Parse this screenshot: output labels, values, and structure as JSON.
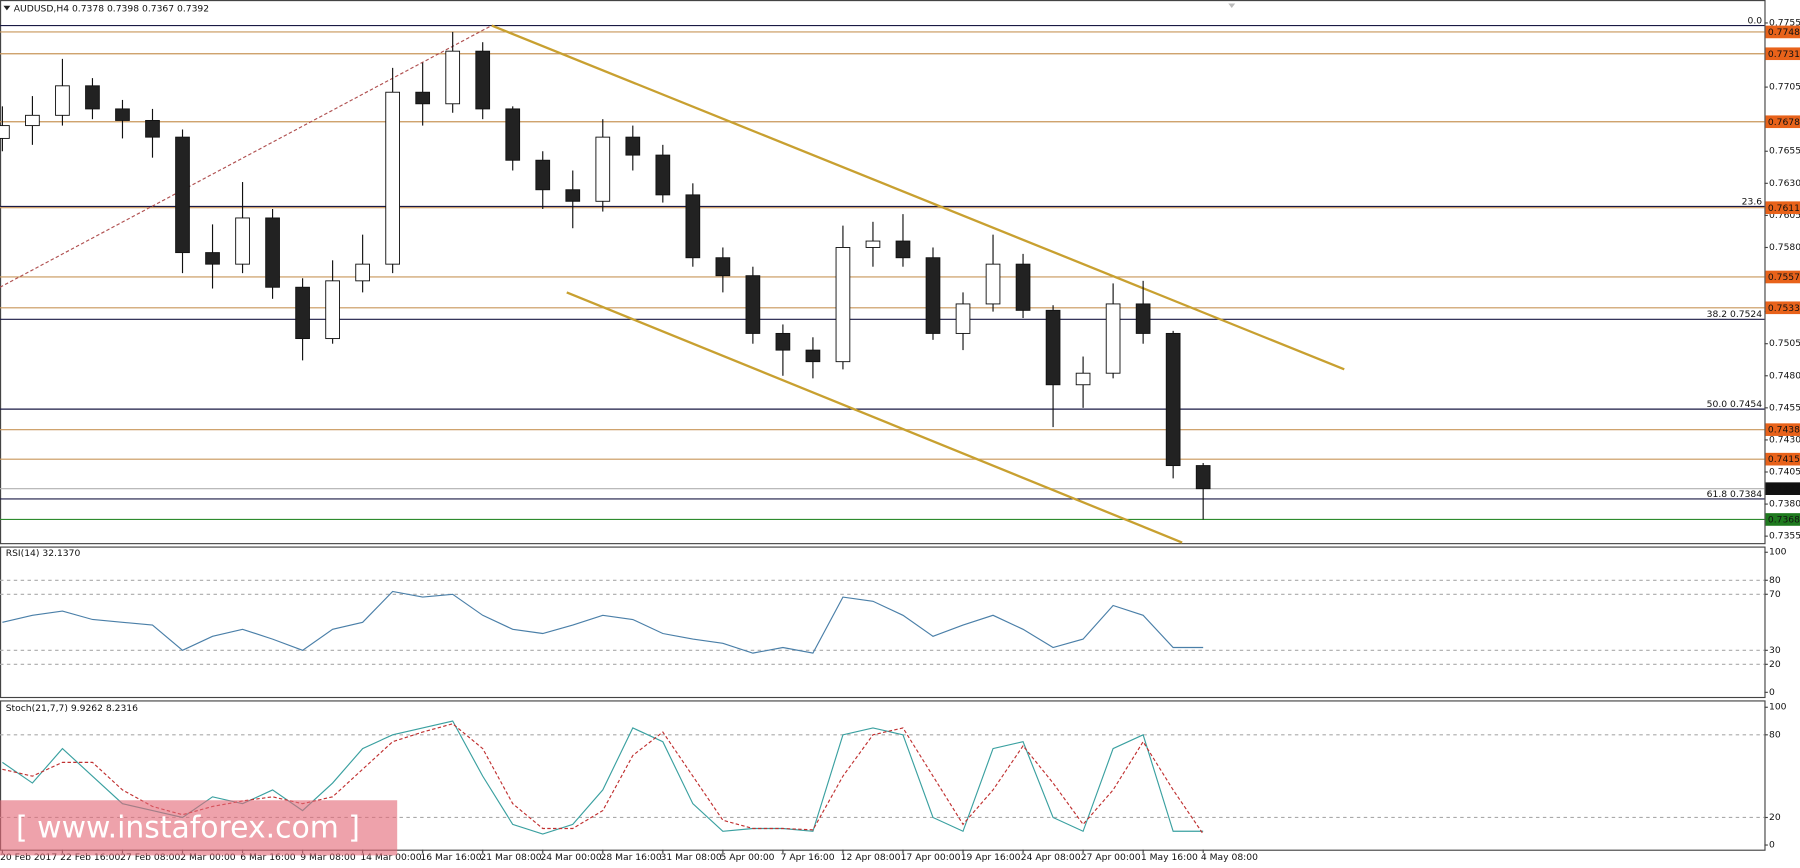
{
  "chart_data": [
    {
      "type": "candlestick",
      "title": "AUDUSD,H4 0.7378 0.7398 0.7367 0.7392",
      "categories": [
        "20 Feb 2017",
        null,
        "22 Feb 16:00",
        null,
        "27 Feb 08:00",
        null,
        "2 Mar 00:00",
        null,
        "6 Mar 16:00",
        null,
        "9 Mar 08:00",
        null,
        "14 Mar 00:00",
        null,
        "16 Mar 16:00",
        null,
        "21 Mar 08:00",
        null,
        "24 Mar 00:00",
        null,
        "28 Mar 16:00",
        null,
        "31 Mar 08:00",
        null,
        "5 Apr 00:00",
        null,
        "7 Apr 16:00",
        null,
        "12 Apr 08:00",
        null,
        "17 Apr 00:00",
        null,
        "19 Apr 16:00",
        null,
        "24 Apr 08:00",
        null,
        "27 Apr 00:00",
        null,
        "1 May 16:00",
        null,
        "4 May 08:00"
      ],
      "open": [
        0.7665,
        0.7675,
        0.7683,
        0.7706,
        0.7688,
        0.7679,
        0.7666,
        0.7576,
        0.7567,
        0.7603,
        0.7549,
        0.7509,
        0.7554,
        0.7567,
        0.7701,
        0.7692,
        0.7733,
        0.7688,
        0.7648,
        0.7625,
        0.7616,
        0.7666,
        0.7652,
        0.7621,
        0.7572,
        0.7558,
        0.7513,
        0.75,
        0.7491,
        0.758,
        0.7585,
        0.7572,
        0.7513,
        0.7536,
        0.7567,
        0.7531,
        0.7473,
        0.7482,
        0.7536,
        0.7513,
        0.741
      ],
      "high": [
        0.769,
        0.7698,
        0.7727,
        0.7712,
        0.7695,
        0.7688,
        0.7672,
        0.7598,
        0.7631,
        0.761,
        0.7556,
        0.757,
        0.759,
        0.772,
        0.7724,
        0.7748,
        0.774,
        0.769,
        0.7655,
        0.764,
        0.768,
        0.7675,
        0.766,
        0.763,
        0.758,
        0.7565,
        0.752,
        0.751,
        0.7597,
        0.76,
        0.7606,
        0.758,
        0.7545,
        0.759,
        0.7575,
        0.7535,
        0.7495,
        0.7552,
        0.7554,
        0.7515,
        0.7412
      ],
      "low": [
        0.7655,
        0.766,
        0.7675,
        0.768,
        0.7665,
        0.765,
        0.756,
        0.7548,
        0.756,
        0.754,
        0.7492,
        0.7505,
        0.7545,
        0.756,
        0.7675,
        0.7685,
        0.768,
        0.764,
        0.761,
        0.7595,
        0.7608,
        0.764,
        0.7615,
        0.7565,
        0.7545,
        0.7505,
        0.748,
        0.7478,
        0.7485,
        0.7565,
        0.7565,
        0.7508,
        0.75,
        0.753,
        0.7525,
        0.744,
        0.7455,
        0.7478,
        0.7505,
        0.74,
        0.7368
      ],
      "close": [
        0.7675,
        0.7683,
        0.7706,
        0.7688,
        0.7679,
        0.7666,
        0.7576,
        0.7567,
        0.7603,
        0.7549,
        0.7509,
        0.7554,
        0.7567,
        0.7701,
        0.7692,
        0.7733,
        0.7688,
        0.7648,
        0.7625,
        0.7616,
        0.7666,
        0.7652,
        0.7621,
        0.7572,
        0.7558,
        0.7513,
        0.75,
        0.7491,
        0.758,
        0.7585,
        0.7572,
        0.7513,
        0.7536,
        0.7567,
        0.7531,
        0.7473,
        0.7482,
        0.7536,
        0.7513,
        0.741,
        0.7392
      ],
      "up_color": "#ffffff",
      "down_color": "#222222",
      "ylim": [
        0.73496,
        0.77711
      ],
      "yticks": [
        0.7755,
        0.7705,
        0.7655,
        {
          "value": 0.763,
          "label": "0.7630"
        },
        0.7605,
        {
          "value": 0.758,
          "label": "0.7580"
        },
        {
          "value": 0.753,
          "label": "0.7530"
        },
        0.7505,
        {
          "value": 0.748,
          "label": "0.7480"
        },
        0.7455,
        {
          "value": 0.743,
          "label": "0.7430"
        },
        0.7405,
        {
          "value": 0.738,
          "label": "0.7380"
        },
        0.7355
      ],
      "grid": false,
      "levels": [
        {
          "value": 0.7748,
          "line_color": "#c8965a",
          "label_color": "#e8621a"
        },
        {
          "value": 0.7731,
          "line_color": "#c8965a",
          "label_color": "#e8621a"
        },
        {
          "value": 0.7678,
          "line_color": "#c8965a",
          "label_color": "#e8621a"
        },
        {
          "value": 0.7611,
          "line_color": "#c8965a",
          "label_color": "#e8621a"
        },
        {
          "value": 0.7557,
          "line_color": "#c8965a",
          "label_color": "#e8621a"
        },
        {
          "value": 0.7533,
          "line_color": "#c8965a",
          "label_color": "#e8621a"
        },
        {
          "value": 0.7438,
          "line_color": "#c8965a",
          "label_color": "#e8621a"
        },
        {
          "value": 0.7415,
          "line_color": "#c8965a",
          "label_color": "#e8621a"
        },
        {
          "value": 0.7392,
          "line_color": "#b0b0b0",
          "label_color": "#111111"
        },
        {
          "value": 0.7368,
          "line_color": "#2e8b2e",
          "label_color": "#1e7a1e"
        }
      ],
      "fib_color": "#1a1a44",
      "fib_levels": [
        {
          "value": 0.7753,
          "label": "0.0"
        },
        {
          "value": 0.7612,
          "label": "23.6"
        },
        {
          "value": 0.7524,
          "label": "38.2 0.7524"
        },
        {
          "value": 0.7454,
          "label": "50.0 0.7454"
        },
        {
          "value": 0.7384,
          "label": "61.8 0.7384"
        }
      ],
      "trendlines": [
        {
          "x": [
            16.3,
            44.7
          ],
          "y": [
            0.7753,
            0.7485
          ],
          "color": "#c8a030",
          "dashed": false
        },
        {
          "x": [
            18.8,
            39.3
          ],
          "y": [
            0.7545,
            0.735
          ],
          "color": "#c8a030",
          "dashed": false
        },
        {
          "x": [
            -0.08,
            16.3
          ],
          "y": [
            0.7549,
            0.7753
          ],
          "color": "#b05050",
          "dashed": true
        }
      ]
    },
    {
      "type": "line",
      "title": "RSI(14) 32.1370",
      "values": [
        50,
        55,
        58,
        52,
        50,
        48,
        30,
        40,
        45,
        38,
        30,
        45,
        50,
        72,
        68,
        70,
        55,
        45,
        42,
        48,
        55,
        52,
        42,
        38,
        35,
        28,
        32,
        28,
        68,
        65,
        55,
        40,
        48,
        55,
        45,
        32,
        38,
        62,
        55,
        32,
        32
      ],
      "color": "#4a7fa8",
      "ylim": [
        0,
        100
      ],
      "yticks": [
        100,
        80,
        70,
        30,
        20,
        0
      ],
      "grid": true
    },
    {
      "type": "line",
      "title": "Stoch(21,7,7) 9.9262 8.2316",
      "series": [
        {
          "color": "#3aa0a0",
          "dashed": false,
          "values": [
            60,
            45,
            70,
            50,
            30,
            25,
            20,
            35,
            30,
            40,
            25,
            45,
            70,
            80,
            85,
            90,
            50,
            15,
            8,
            15,
            40,
            85,
            75,
            30,
            10,
            12,
            12,
            10,
            80,
            85,
            80,
            20,
            10,
            70,
            75,
            20,
            10,
            70,
            80,
            10,
            10
          ]
        },
        {
          "color": "#c03030",
          "dashed": true,
          "values": [
            55,
            50,
            60,
            60,
            40,
            28,
            22,
            28,
            32,
            35,
            30,
            35,
            55,
            75,
            82,
            88,
            70,
            30,
            12,
            12,
            25,
            65,
            82,
            50,
            18,
            12,
            12,
            11,
            50,
            80,
            85,
            50,
            15,
            40,
            72,
            45,
            15,
            40,
            75,
            40,
            8
          ]
        }
      ],
      "ylim": [
        0,
        100
      ],
      "yticks": [
        100,
        80,
        20,
        0
      ],
      "grid": true
    }
  ],
  "watermark": "[ www.instaforex.com ]"
}
